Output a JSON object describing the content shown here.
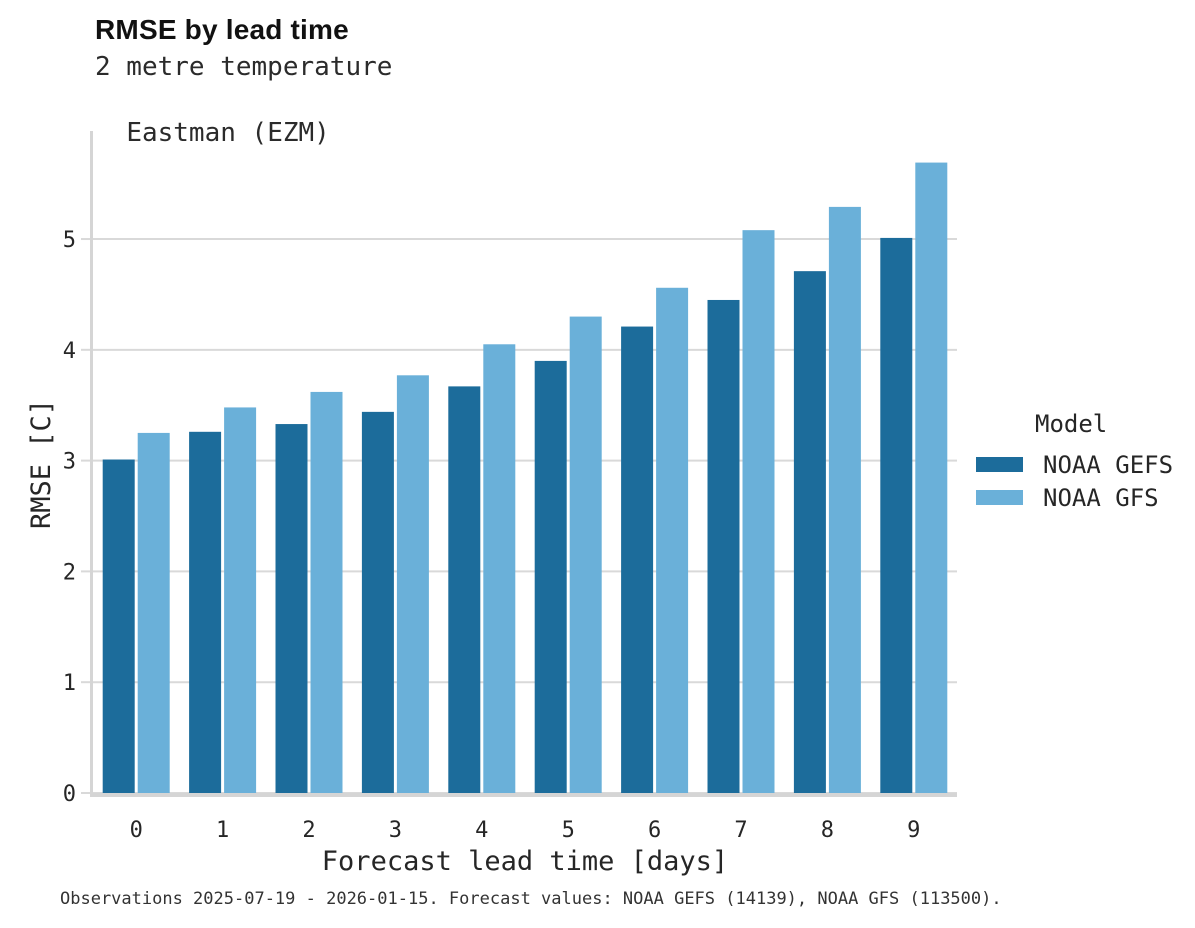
{
  "header": {
    "title": "RMSE by lead time",
    "subtitle_line1": "2 metre temperature",
    "subtitle_line2": "Eastman (EZM)"
  },
  "legend": {
    "title": "Model"
  },
  "footer": {
    "caption": "Observations 2025-07-19 - 2026-01-15. Forecast values: NOAA GEFS (14139), NOAA GFS (113500)."
  },
  "colors": {
    "gefs_dark_blue": "#1c6c9b",
    "gfs_light_blue": "#6ab0d9",
    "grid": "#d9d9d9",
    "spine": "#d5d5d5",
    "text": "#262626"
  },
  "chart_data": {
    "type": "bar",
    "title": "RMSE by lead time",
    "subtitle": [
      "2 metre temperature",
      "Eastman (EZM)"
    ],
    "categories": [
      0,
      1,
      2,
      3,
      4,
      5,
      6,
      7,
      8,
      9
    ],
    "series": [
      {
        "name": "NOAA GEFS",
        "color": "#1c6c9b",
        "values": [
          3.01,
          3.26,
          3.33,
          3.44,
          3.67,
          3.9,
          4.21,
          4.45,
          4.71,
          5.01
        ]
      },
      {
        "name": "NOAA GFS",
        "color": "#6ab0d9",
        "values": [
          3.25,
          3.48,
          3.62,
          3.77,
          4.05,
          4.3,
          4.56,
          5.08,
          5.29,
          5.69
        ]
      }
    ],
    "xlabel": "Forecast lead time [days]",
    "ylabel": "RMSE [C]",
    "ylim": [
      0,
      5.975
    ],
    "yticks": [
      0,
      1,
      2,
      3,
      4,
      5
    ],
    "grid": true,
    "legend_title": "Model",
    "legend_position": "right",
    "caption": "Observations 2025-07-19 - 2026-01-15. Forecast values: NOAA GEFS (14139), NOAA GFS (113500)."
  }
}
